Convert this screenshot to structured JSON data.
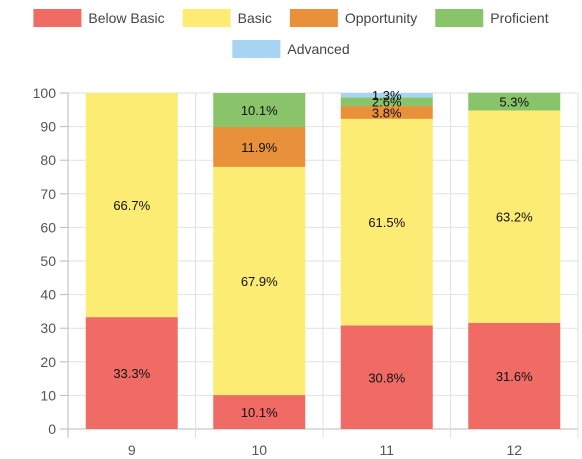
{
  "chart_data": {
    "type": "bar",
    "stacked": true,
    "categories": [
      "9",
      "10",
      "11",
      "12"
    ],
    "ylim": [
      0,
      100
    ],
    "yticks": [
      0,
      10,
      20,
      30,
      40,
      50,
      60,
      70,
      80,
      90,
      100
    ],
    "grid": true,
    "legend_position": "top",
    "series": [
      {
        "name": "Below Basic",
        "color": "#ef6b64",
        "values": [
          33.3,
          10.1,
          30.8,
          31.6
        ],
        "labels": [
          "33.3%",
          "10.1%",
          "30.8%",
          "31.6%"
        ]
      },
      {
        "name": "Basic",
        "color": "#fcec74",
        "values": [
          66.7,
          67.9,
          61.5,
          63.2
        ],
        "labels": [
          "66.7%",
          "67.9%",
          "61.5%",
          "63.2%"
        ]
      },
      {
        "name": "Opportunity",
        "color": "#e8913a",
        "values": [
          0,
          11.9,
          3.8,
          0
        ],
        "labels": [
          "",
          "11.9%",
          "3.8%",
          ""
        ]
      },
      {
        "name": "Proficient",
        "color": "#8ac46a",
        "values": [
          0,
          10.1,
          2.6,
          5.3
        ],
        "labels": [
          "",
          "10.1%",
          "2.6%",
          "5.3%"
        ]
      },
      {
        "name": "Advanced",
        "color": "#a6d4f2",
        "values": [
          0,
          0,
          1.3,
          0
        ],
        "labels": [
          "",
          "",
          "1.3%",
          ""
        ]
      }
    ]
  }
}
